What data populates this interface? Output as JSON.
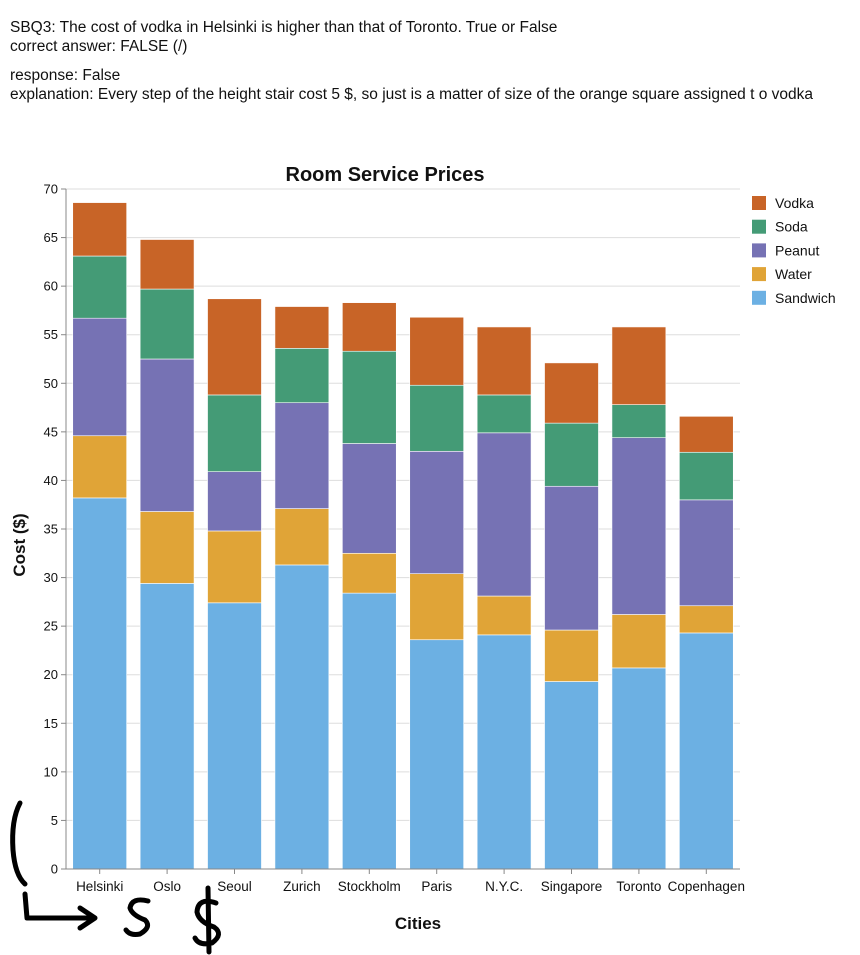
{
  "question": {
    "line1": "SBQ3: The cost of vodka in Helsinki is higher than that of Toronto. True or False",
    "line2": "correct answer: FALSE (/)",
    "response": "response: False",
    "explanation": "explanation: Every step of the height stair cost 5 $, so just is a matter of size of the orange square assigned t o vodka"
  },
  "chart_data": {
    "type": "bar",
    "stacked": true,
    "title": "Room Service Prices",
    "xlabel": "Cities",
    "ylabel": "Cost ($)",
    "ylim": [
      0,
      70
    ],
    "yticks": [
      0,
      5,
      10,
      15,
      20,
      25,
      30,
      35,
      40,
      45,
      50,
      55,
      60,
      65,
      70
    ],
    "grid": true,
    "legend_position": "right",
    "categories": [
      "Helsinki",
      "Oslo",
      "Seoul",
      "Zurich",
      "Stockholm",
      "Paris",
      "N.Y.C.",
      "Singapore",
      "Toronto",
      "Copenhagen"
    ],
    "series": [
      {
        "name": "Sandwich",
        "color": "#6cb0e3",
        "values": [
          38.2,
          29.4,
          27.4,
          31.3,
          28.4,
          23.6,
          24.1,
          19.3,
          20.7,
          24.3
        ]
      },
      {
        "name": "Water",
        "color": "#e0a437",
        "values": [
          6.4,
          7.4,
          7.4,
          5.8,
          4.1,
          6.8,
          4.0,
          5.3,
          5.5,
          2.8
        ]
      },
      {
        "name": "Peanut",
        "color": "#7672b4",
        "values": [
          12.1,
          15.7,
          6.1,
          10.9,
          11.3,
          12.6,
          16.8,
          14.8,
          18.2,
          10.9
        ]
      },
      {
        "name": "Soda",
        "color": "#449b76",
        "values": [
          6.4,
          7.2,
          7.9,
          5.6,
          9.5,
          6.8,
          3.9,
          6.5,
          3.4,
          4.9
        ]
      },
      {
        "name": "Vodka",
        "color": "#c86427",
        "values": [
          5.5,
          5.1,
          9.9,
          4.3,
          5.0,
          7.0,
          7.0,
          6.2,
          8.0,
          3.7
        ]
      }
    ]
  },
  "legend_order": [
    "Vodka",
    "Soda",
    "Peanut",
    "Water",
    "Sandwich"
  ],
  "annotation": {
    "icon": "handwritten-arrow-dollar-scribble",
    "color": "#000000"
  }
}
